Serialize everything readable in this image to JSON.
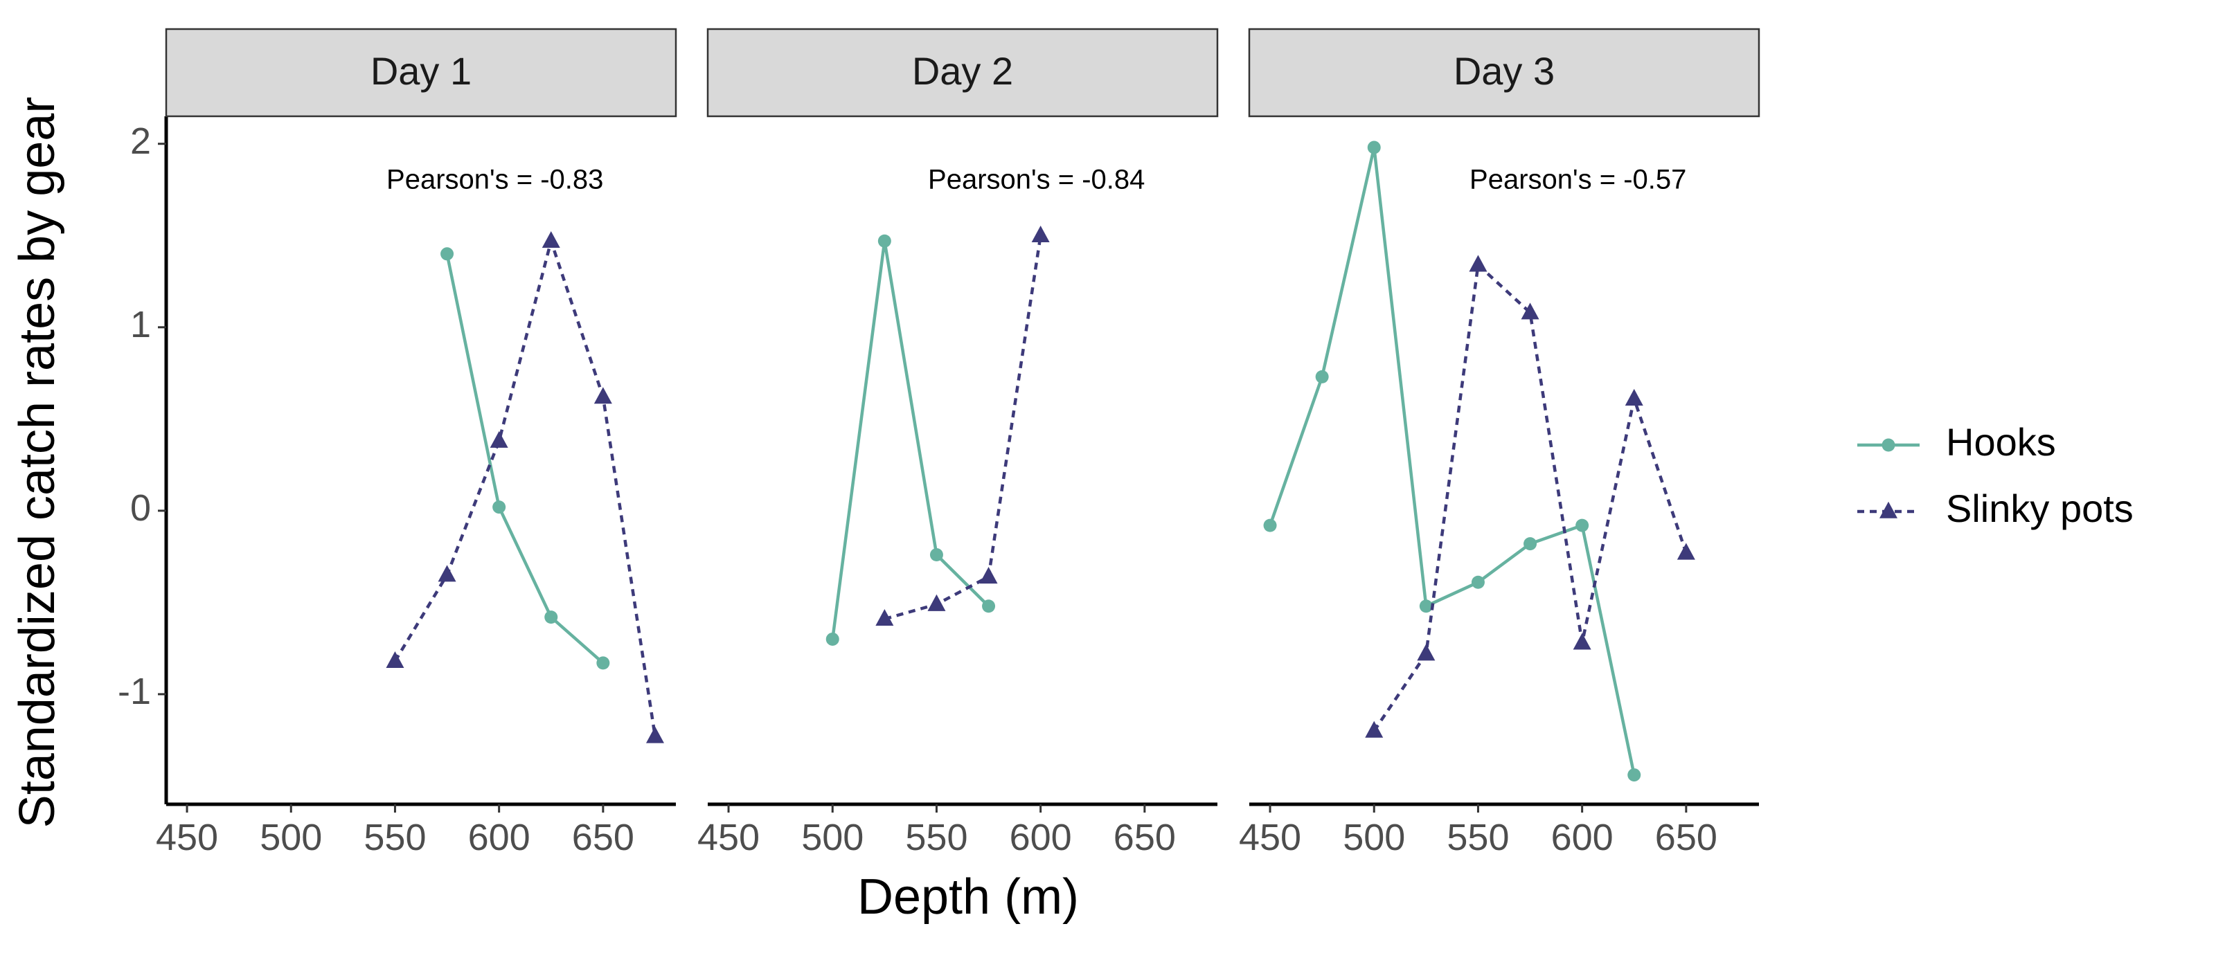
{
  "chart_data": {
    "type": "line",
    "xlabel": "Depth (m)",
    "ylabel": "Standardized catch rates by gear",
    "xlim": [
      440,
      685
    ],
    "ylim": [
      -1.6,
      2.15
    ],
    "x_ticks": [
      450,
      500,
      550,
      600,
      650
    ],
    "x_tick_labels": [
      "450",
      "500",
      "550",
      "600",
      "650"
    ],
    "y_ticks": [
      -1,
      0,
      1,
      2
    ],
    "y_tick_labels": [
      "-1",
      "0",
      "1",
      "2"
    ],
    "grid": false,
    "legend_position": "right",
    "legend": [
      {
        "name": "Hooks",
        "color": "#66b2a0",
        "line": "solid",
        "marker": "circle"
      },
      {
        "name": "Slinky pots",
        "color": "#3d3a7a",
        "line": "dotted",
        "marker": "triangle"
      }
    ],
    "panels": [
      {
        "title": "Day 1",
        "annotation": "Pearson's = -0.83",
        "series": [
          {
            "name": "Hooks",
            "x": [
              575,
              600,
              625,
              650
            ],
            "y": [
              1.4,
              0.02,
              -0.58,
              -0.83
            ]
          },
          {
            "name": "Slinky pots",
            "x": [
              550,
              575,
              600,
              625,
              650,
              675
            ],
            "y": [
              -0.82,
              -0.35,
              0.38,
              1.47,
              0.62,
              -1.23
            ]
          }
        ]
      },
      {
        "title": "Day 2",
        "annotation": "Pearson's = -0.84",
        "series": [
          {
            "name": "Hooks",
            "x": [
              500,
              525,
              550,
              575
            ],
            "y": [
              -0.7,
              1.47,
              -0.24,
              -0.52
            ]
          },
          {
            "name": "Slinky pots",
            "x": [
              525,
              550,
              575,
              600
            ],
            "y": [
              -0.59,
              -0.51,
              -0.36,
              1.5
            ]
          }
        ]
      },
      {
        "title": "Day 3",
        "annotation": "Pearson's = -0.57",
        "series": [
          {
            "name": "Hooks",
            "x": [
              450,
              475,
              500,
              525,
              550,
              575,
              600,
              625
            ],
            "y": [
              -0.08,
              0.73,
              1.98,
              -0.52,
              -0.39,
              -0.18,
              -0.08,
              -1.44
            ]
          },
          {
            "name": "Slinky pots",
            "x": [
              500,
              525,
              550,
              575,
              600,
              625,
              650
            ],
            "y": [
              -1.2,
              -0.78,
              1.34,
              1.08,
              -0.72,
              0.61,
              -0.23
            ]
          }
        ]
      }
    ]
  }
}
